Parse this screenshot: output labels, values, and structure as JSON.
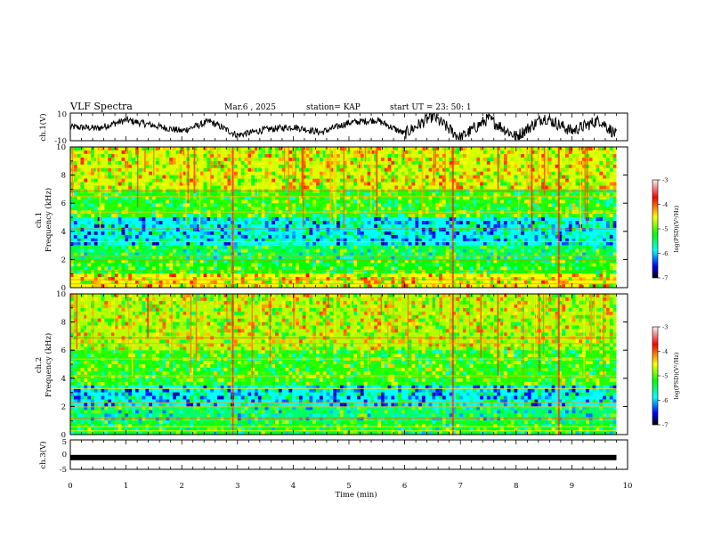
{
  "header": {
    "title": "VLF Spectra",
    "date": "Mar.6 , 2025",
    "station": "station= KAP",
    "start": "start UT = 23: 50: 1"
  },
  "panels": {
    "ch1_wave": {
      "ylabel": "ch.1(V)",
      "ytick_top": "10",
      "ytick_bottom": "-10"
    },
    "ch1_spec": {
      "ylabel": "ch.1\nFrequency (kHz)",
      "yticks": [
        "0",
        "2",
        "4",
        "6",
        "8",
        "10"
      ]
    },
    "ch2_spec": {
      "ylabel": "ch.2\nFrequency (kHz)",
      "yticks": [
        "0",
        "2",
        "4",
        "6",
        "8",
        "10"
      ]
    },
    "ch3_wave": {
      "ylabel": "ch.3(V)",
      "ytick_top": "5",
      "ytick_mid": "0",
      "ytick_bottom": "-5"
    }
  },
  "xaxis": {
    "label": "Time (min)",
    "ticks": [
      "0",
      "1",
      "2",
      "3",
      "4",
      "5",
      "6",
      "7",
      "8",
      "9",
      "10"
    ]
  },
  "colorbar": {
    "label": "log(PSD)(V²/Hz)",
    "ticks": [
      "-3",
      "-4",
      "-5",
      "-6",
      "-7"
    ],
    "colors": [
      "#f4f4f4",
      "#ff0000",
      "#ffff00",
      "#00ff00",
      "#00ffff",
      "#0000ff",
      "#000000"
    ]
  },
  "chart_data": [
    {
      "type": "line",
      "title": "",
      "ylabel": "ch.1(V)",
      "xlabel": "Time (min)",
      "xlim": [
        0,
        10
      ],
      "ylim": [
        -10,
        10
      ],
      "x": [
        0,
        0.5,
        1,
        1.5,
        2,
        2.5,
        3,
        3.5,
        4,
        4.5,
        5,
        5.5,
        6,
        6.5,
        7,
        7.5,
        8,
        8.5,
        9,
        9.5,
        9.8
      ],
      "series": [
        {
          "values": [
            0,
            -1,
            5,
            1,
            -3,
            4,
            -6,
            -2,
            0,
            -4,
            3,
            5,
            -5,
            8,
            -8,
            6,
            -7,
            7,
            -3,
            5,
            -6
          ]
        }
      ]
    },
    {
      "type": "heatmap",
      "ylabel": "ch.1 Frequency (kHz)",
      "xlim": [
        0,
        10
      ],
      "ylim": [
        0,
        10
      ],
      "colorbar_label": "log(PSD)(V²/Hz)",
      "colorbar_range": [
        -7,
        -3
      ],
      "bands_khz": [
        {
          "from": 0,
          "to": 1,
          "level": -4.5
        },
        {
          "from": 1,
          "to": 2,
          "level": -5.2
        },
        {
          "from": 2,
          "to": 3,
          "level": -5.4
        },
        {
          "from": 3,
          "to": 5,
          "level": -5.9
        },
        {
          "from": 5,
          "to": 7,
          "level": -5.1
        },
        {
          "from": 7,
          "to": 10,
          "level": -4.6
        }
      ]
    },
    {
      "type": "heatmap",
      "ylabel": "ch.2 Frequency (kHz)",
      "xlim": [
        0,
        10
      ],
      "ylim": [
        0,
        10
      ],
      "colorbar_label": "log(PSD)(V²/Hz)",
      "colorbar_range": [
        -7,
        -3
      ],
      "bands_khz": [
        {
          "from": 0,
          "to": 1,
          "level": -5.3
        },
        {
          "from": 1,
          "to": 2,
          "level": -5.5
        },
        {
          "from": 2,
          "to": 3.5,
          "level": -5.9
        },
        {
          "from": 3.5,
          "to": 6,
          "level": -5.1
        },
        {
          "from": 6,
          "to": 10,
          "level": -4.7
        }
      ]
    },
    {
      "type": "line",
      "ylabel": "ch.3(V)",
      "xlabel": "Time (min)",
      "xlim": [
        0,
        10
      ],
      "ylim": [
        -5,
        5
      ],
      "x": [
        0,
        9.8
      ],
      "series": [
        {
          "values": [
            -1,
            -1
          ]
        }
      ]
    }
  ]
}
